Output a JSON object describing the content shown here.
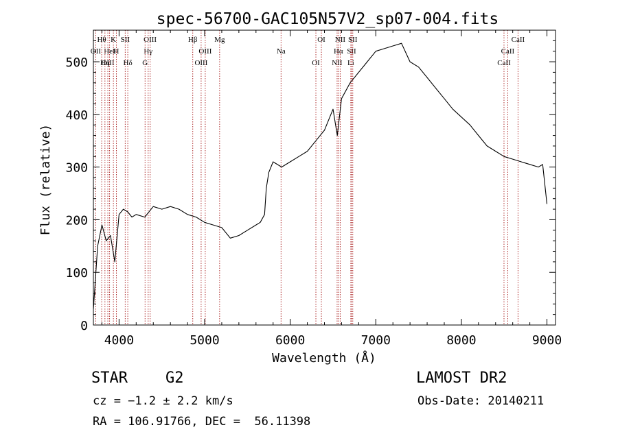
{
  "chart_data": {
    "type": "line",
    "title": "spec-56700-GAC105N57V2_sp07-004.fits",
    "xlabel": "Wavelength (Å)",
    "ylabel": "Flux (relative)",
    "xlim": [
      3700,
      9100
    ],
    "ylim": [
      0,
      560
    ],
    "xticks": [
      4000,
      5000,
      6000,
      7000,
      8000,
      9000
    ],
    "yticks": [
      0,
      100,
      200,
      300,
      400,
      500
    ],
    "grid": false,
    "line_color": "#000000",
    "marker_color": "#b03030",
    "series": [
      {
        "x": [
          3700,
          3750,
          3800,
          3850,
          3900,
          3950,
          4000,
          4050,
          4100,
          4150,
          4200,
          4300,
          4400,
          4500,
          4600,
          4700,
          4800,
          4900,
          5000,
          5100,
          5200,
          5300,
          5400,
          5500,
          5600,
          5650,
          5700,
          5720,
          5750,
          5800,
          5900,
          6000,
          6100,
          6200,
          6300,
          6400,
          6500,
          6550,
          6600,
          6700,
          6800,
          6900,
          7000,
          7100,
          7200,
          7300,
          7400,
          7500,
          7600,
          7700,
          7800,
          7900,
          8000,
          8100,
          8200,
          8300,
          8400,
          8500,
          8600,
          8700,
          8800,
          8900,
          8950,
          9000
        ],
        "y": [
          30,
          150,
          190,
          160,
          170,
          120,
          210,
          220,
          215,
          205,
          210,
          205,
          225,
          220,
          225,
          220,
          210,
          205,
          195,
          190,
          185,
          165,
          170,
          180,
          190,
          195,
          210,
          260,
          290,
          310,
          300,
          310,
          320,
          330,
          350,
          370,
          410,
          360,
          430,
          460,
          480,
          500,
          520,
          525,
          530,
          535,
          500,
          490,
          470,
          450,
          430,
          410,
          395,
          380,
          360,
          340,
          330,
          320,
          315,
          310,
          305,
          300,
          305,
          230
        ]
      }
    ],
    "line_markers": [
      {
        "label": "Hθ",
        "x": 3797
      },
      {
        "label": "OII",
        "x": 3727
      },
      {
        "label": "OIII",
        "x": 3869
      },
      {
        "label": "K",
        "x": 3934
      },
      {
        "label": "HeI",
        "x": 3889
      },
      {
        "label": "Hη",
        "x": 3835
      },
      {
        "label": "SII",
        "x": 4072
      },
      {
        "label": "H",
        "x": 3969
      },
      {
        "label": "Hδ",
        "x": 4102
      },
      {
        "label": "OIII",
        "x": 4363
      },
      {
        "label": "Hγ",
        "x": 4340
      },
      {
        "label": "G",
        "x": 4304
      },
      {
        "label": "Hβ",
        "x": 4861
      },
      {
        "label": "OIII",
        "x": 5007
      },
      {
        "label": "OIII",
        "x": 4959
      },
      {
        "label": "Mg",
        "x": 5175
      },
      {
        "label": "Na",
        "x": 5893
      },
      {
        "label": "OI",
        "x": 6300
      },
      {
        "label": "OI",
        "x": 6364
      },
      {
        "label": "Hα",
        "x": 6563
      },
      {
        "label": "NII",
        "x": 6548
      },
      {
        "label": "NII",
        "x": 6584
      },
      {
        "label": "SII",
        "x": 6717
      },
      {
        "label": "Li",
        "x": 6708
      },
      {
        "label": "SII",
        "x": 6731
      },
      {
        "label": "CaII",
        "x": 8542
      },
      {
        "label": "CaII",
        "x": 8498
      },
      {
        "label": "CaII",
        "x": 8662
      }
    ]
  },
  "info": {
    "object_class": "STAR",
    "subclass": "G2",
    "cz": "cz = −1.2 ± 2.2 km/s",
    "coords": "RA = 106.91766, DEC =  56.11398",
    "survey": "LAMOST DR2",
    "obs_date": "Obs-Date: 20140211"
  }
}
